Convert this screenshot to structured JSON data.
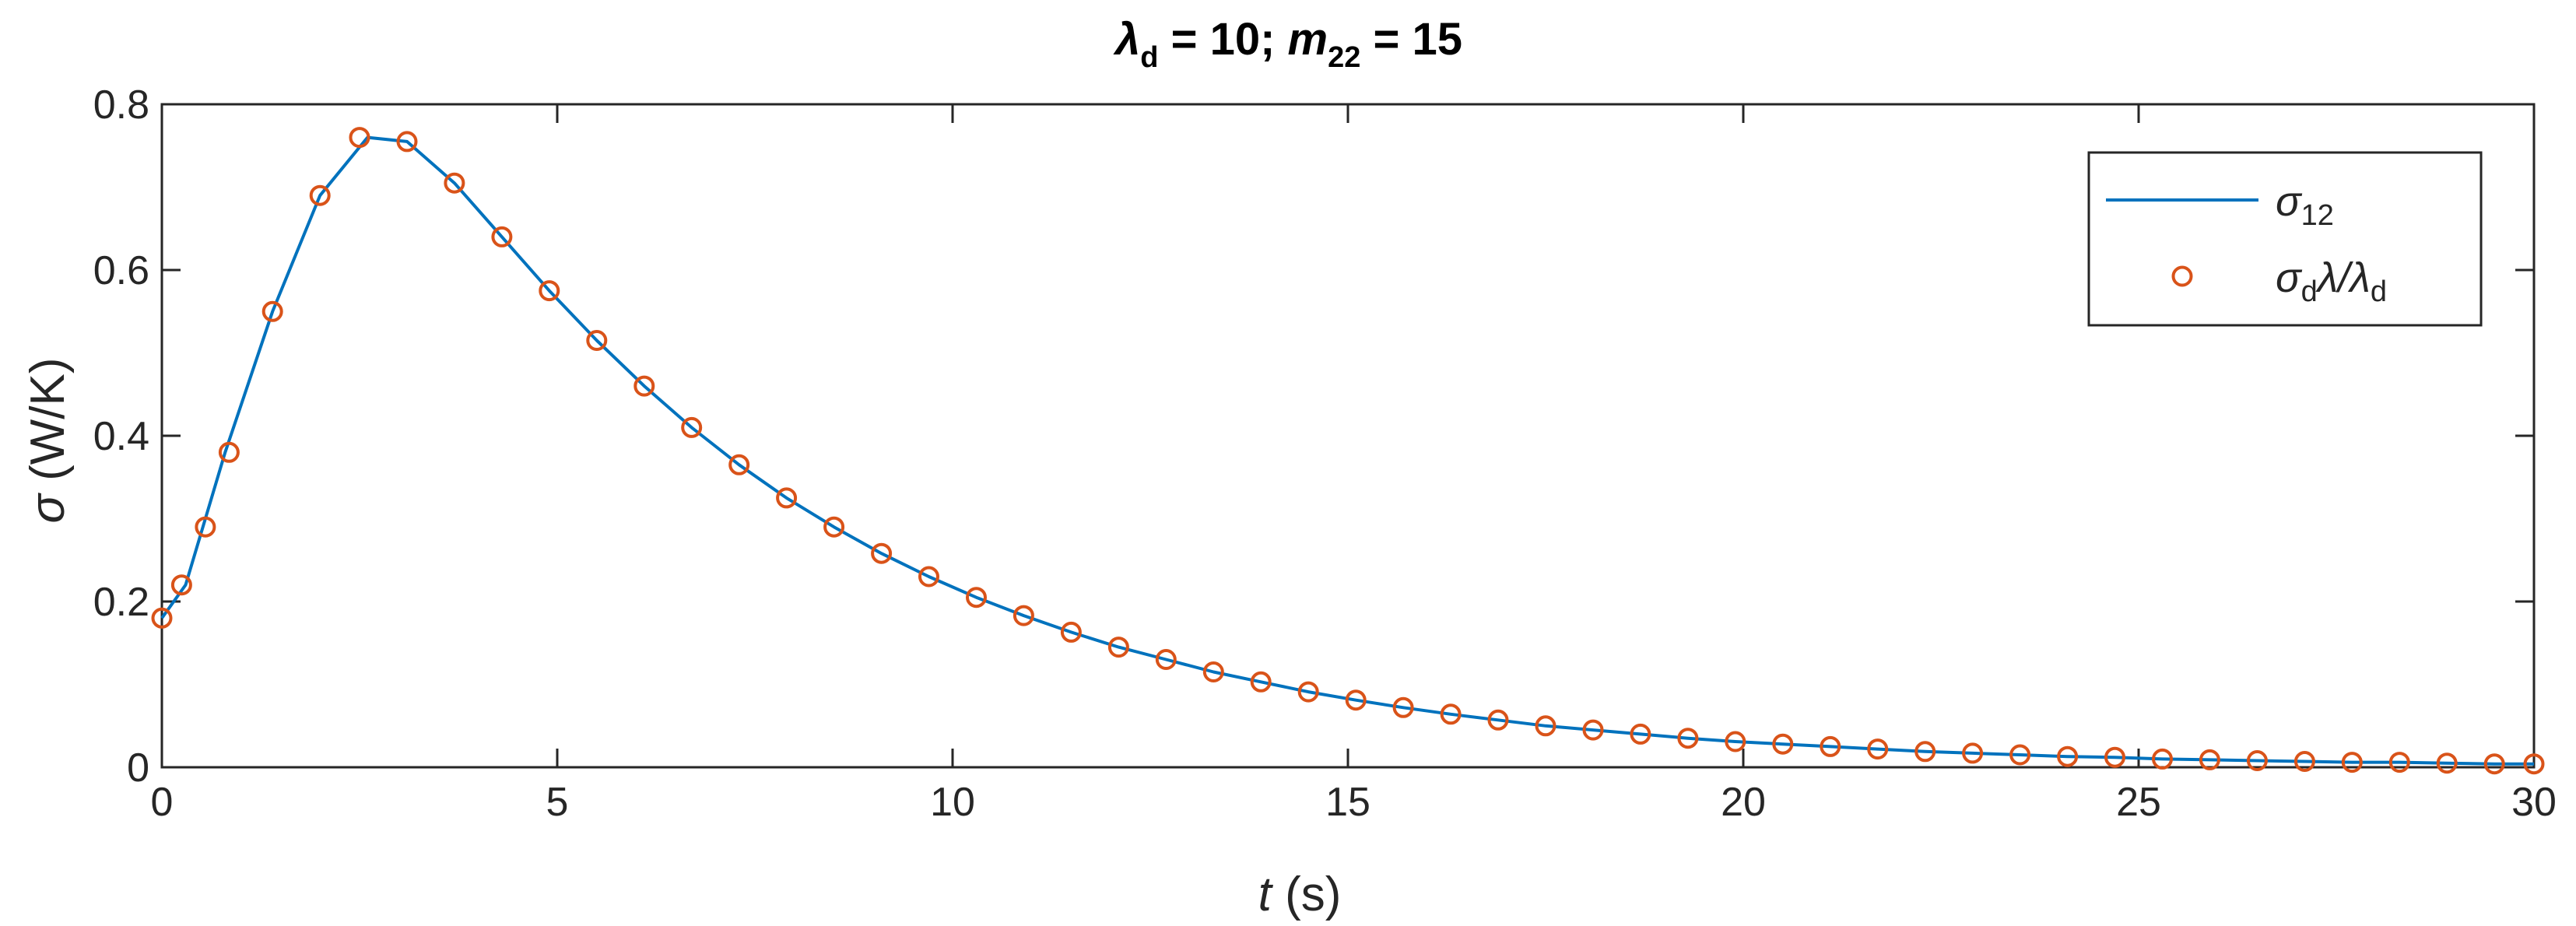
{
  "chart_data": {
    "type": "line",
    "title": {
      "lhs1": "λ",
      "sub1": "d",
      "rhs1": " = 10; ",
      "lhs2": "m",
      "sub2": "22",
      "rhs2": " = 15"
    },
    "xlabel": {
      "var": "t",
      "unit": " (s)"
    },
    "ylabel": {
      "var": "σ",
      "unit": " (W/K)"
    },
    "xlim": [
      0,
      30
    ],
    "ylim": [
      0,
      0.8
    ],
    "x_ticks": [
      0,
      5,
      10,
      15,
      20,
      25,
      30
    ],
    "y_ticks": [
      0,
      0.2,
      0.4,
      0.6,
      0.8
    ],
    "x_tick_labels": [
      "0",
      "5",
      "10",
      "15",
      "20",
      "25",
      "30"
    ],
    "y_tick_labels": [
      "0",
      "0.2",
      "0.4",
      "0.6",
      "0.8"
    ],
    "grid": false,
    "legend_position": "top-right",
    "legend": [
      {
        "key": "line",
        "text_main": "σ",
        "text_sub": "12",
        "text_after": "",
        "text_sub2": ""
      },
      {
        "key": "markers",
        "text_main": "σ",
        "text_sub": "d",
        "text_after": "λ/λ",
        "text_sub2": "d"
      }
    ],
    "colors": {
      "line": "#0072BD",
      "markers": "#D95319"
    },
    "series": [
      {
        "style": "line",
        "x": [
          0,
          0.3,
          0.8,
          1.4,
          2.0,
          2.6,
          3.1,
          3.7,
          4.3,
          4.9,
          5.5,
          6.1,
          6.7,
          7.3,
          7.9,
          8.5,
          9.1,
          9.7,
          10.3,
          10.9,
          11.5,
          12.1,
          12.7,
          13.3,
          13.9,
          14.5,
          15.1,
          15.7,
          16.3,
          16.9,
          17.5,
          18.1,
          18.7,
          19.3,
          19.9,
          20.5,
          21.1,
          21.7,
          22.3,
          22.9,
          23.5,
          24.1,
          24.7,
          25.3,
          25.9,
          26.5,
          27.1,
          27.7,
          28.3,
          28.9,
          29.5,
          30.0
        ],
        "y": [
          0.18,
          0.22,
          0.38,
          0.55,
          0.69,
          0.76,
          0.755,
          0.705,
          0.64,
          0.575,
          0.515,
          0.46,
          0.41,
          0.365,
          0.325,
          0.29,
          0.258,
          0.23,
          0.205,
          0.183,
          0.163,
          0.145,
          0.13,
          0.115,
          0.103,
          0.091,
          0.081,
          0.072,
          0.064,
          0.057,
          0.05,
          0.045,
          0.04,
          0.035,
          0.031,
          0.028,
          0.025,
          0.022,
          0.019,
          0.017,
          0.015,
          0.013,
          0.012,
          0.01,
          0.009,
          0.008,
          0.007,
          0.006,
          0.006,
          0.005,
          0.004,
          0.004
        ]
      },
      {
        "style": "markers",
        "x": [
          0,
          0.25,
          0.55,
          0.85,
          1.4,
          2.0,
          2.5,
          3.1,
          3.7,
          4.3,
          4.9,
          5.5,
          6.1,
          6.7,
          7.3,
          7.9,
          8.5,
          9.1,
          9.7,
          10.3,
          10.9,
          11.5,
          12.1,
          12.7,
          13.3,
          13.9,
          14.5,
          15.1,
          15.7,
          16.3,
          16.9,
          17.5,
          18.1,
          18.7,
          19.3,
          19.9,
          20.5,
          21.1,
          21.7,
          22.3,
          22.9,
          23.5,
          24.1,
          24.7,
          25.3,
          25.9,
          26.5,
          27.1,
          27.7,
          28.3,
          28.9,
          29.5,
          30.0
        ],
        "y": [
          0.18,
          0.22,
          0.29,
          0.38,
          0.55,
          0.69,
          0.76,
          0.755,
          0.705,
          0.64,
          0.575,
          0.515,
          0.46,
          0.41,
          0.365,
          0.325,
          0.29,
          0.258,
          0.23,
          0.205,
          0.183,
          0.163,
          0.145,
          0.13,
          0.115,
          0.103,
          0.091,
          0.081,
          0.072,
          0.064,
          0.057,
          0.05,
          0.045,
          0.04,
          0.035,
          0.031,
          0.028,
          0.025,
          0.022,
          0.019,
          0.017,
          0.015,
          0.013,
          0.012,
          0.01,
          0.009,
          0.008,
          0.007,
          0.006,
          0.006,
          0.005,
          0.004,
          0.004
        ]
      }
    ]
  }
}
